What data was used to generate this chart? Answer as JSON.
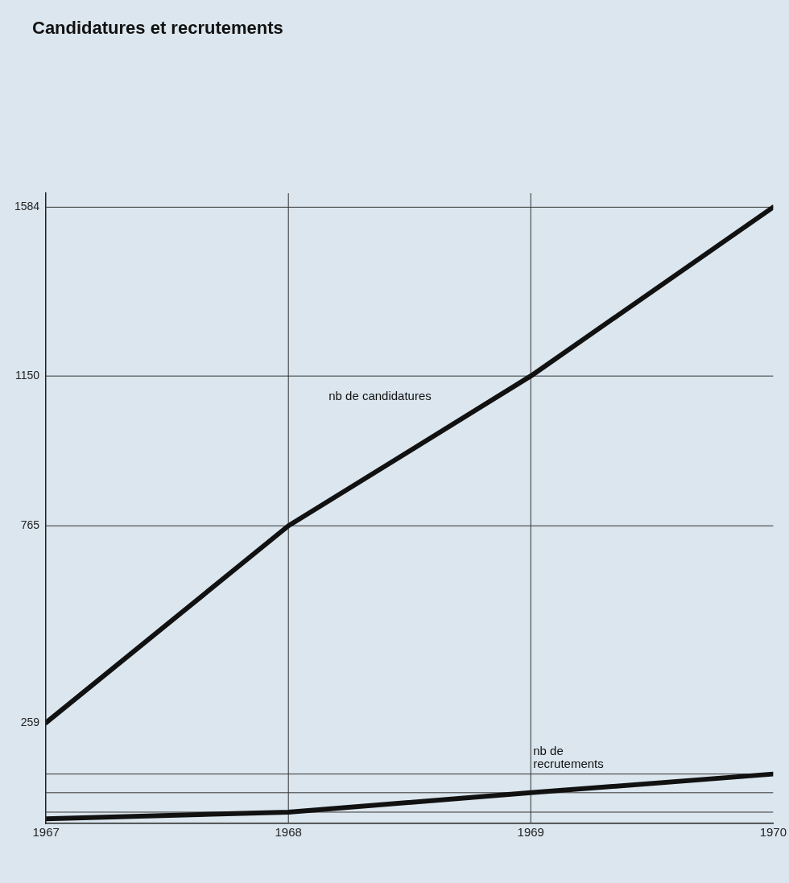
{
  "chart_data": {
    "type": "line",
    "title": "Candidatures et recrutements",
    "x": [
      1967,
      1968,
      1969,
      1970
    ],
    "series": [
      {
        "name": "nb de candidatures",
        "color": "#111111",
        "values": [
          259,
          765,
          1150,
          1584
        ]
      },
      {
        "name": "nb de recrutements",
        "color": "#111111",
        "values": [
          12,
          29,
          79,
          127
        ]
      }
    ],
    "xlim": [
      1967,
      1970
    ],
    "xticks": [
      1967,
      1968,
      1969,
      1970
    ],
    "ylim": [
      0,
      1620
    ],
    "yticks": [
      259,
      765,
      1150,
      1584
    ],
    "ref_lines": [
      {
        "axis": "y",
        "value": 1584
      },
      {
        "axis": "y",
        "value": 1150
      },
      {
        "axis": "y",
        "value": 765
      },
      {
        "axis": "y",
        "value": 127
      },
      {
        "axis": "y",
        "value": 79
      },
      {
        "axis": "y",
        "value": 29
      },
      {
        "axis": "x",
        "value": 1968
      },
      {
        "axis": "x",
        "value": 1969
      }
    ],
    "grid": false,
    "legend": false,
    "marker": "none",
    "line_style": "solid"
  }
}
